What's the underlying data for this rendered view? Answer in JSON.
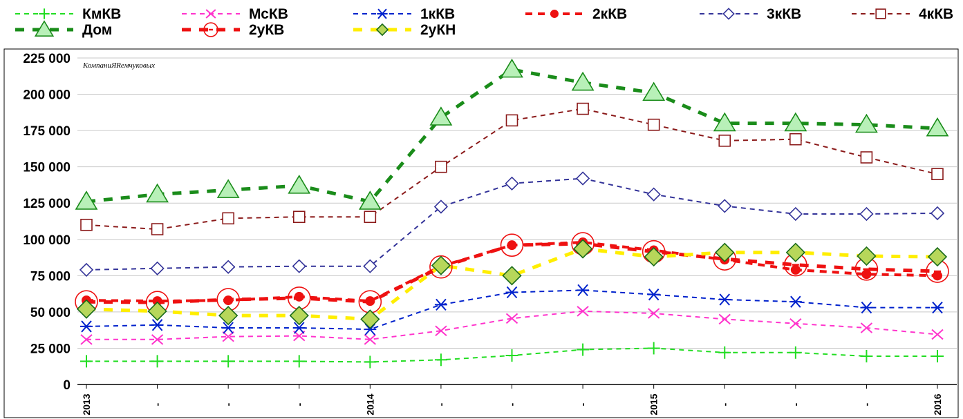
{
  "chart_data": {
    "type": "line",
    "title": "",
    "watermark": "КомпаниЯRемчуковых",
    "x_tick_labels": [
      "2013",
      "-",
      "-",
      "-",
      "2014",
      "-",
      "-",
      "-",
      "2015",
      "-",
      "-",
      "-",
      "2016"
    ],
    "ylim": [
      0,
      225000
    ],
    "y_ticks": [
      0,
      25000,
      50000,
      75000,
      100000,
      125000,
      150000,
      175000,
      200000,
      225000
    ],
    "y_tick_labels": [
      "0",
      "25 000",
      "50 000",
      "75 000",
      "100 000",
      "125 000",
      "150 000",
      "175 000",
      "200 000",
      "225 000"
    ],
    "grid": "horizontal",
    "legend_position": "top",
    "series": [
      {
        "name": "КмКВ",
        "color": "#22dd22",
        "marker": "plus",
        "dash": "dashed",
        "values": [
          16000,
          16000,
          16000,
          16000,
          15500,
          17000,
          20000,
          24000,
          25000,
          22000,
          22000,
          19500,
          19500
        ]
      },
      {
        "name": "МсКВ",
        "color": "#ff33cc",
        "marker": "x",
        "dash": "dashed",
        "values": [
          31000,
          31000,
          33000,
          33500,
          31000,
          37000,
          45500,
          50500,
          49000,
          45000,
          42000,
          39000,
          34500
        ]
      },
      {
        "name": "1кКВ",
        "color": "#0022cc",
        "marker": "asterisk",
        "dash": "dashed",
        "values": [
          40000,
          41000,
          39000,
          39000,
          38000,
          55000,
          63500,
          65000,
          62000,
          58500,
          57000,
          53000,
          53000
        ]
      },
      {
        "name": "2кКВ",
        "color": "#ee1111",
        "marker": "dot",
        "dash": "dotted",
        "values": [
          58000,
          57500,
          58000,
          60500,
          57500,
          81500,
          96000,
          98000,
          92500,
          86000,
          79000,
          76000,
          75000
        ]
      },
      {
        "name": "3кКВ",
        "color": "#333399",
        "marker": "diamond-open",
        "dash": "dashed",
        "values": [
          79000,
          80000,
          81000,
          81500,
          81500,
          122500,
          138500,
          142000,
          131000,
          123000,
          117500,
          117500,
          118000
        ]
      },
      {
        "name": "4кКВ",
        "color": "#8b1a1a",
        "marker": "square-open",
        "dash": "dashed",
        "values": [
          110000,
          107000,
          114500,
          115500,
          115500,
          150000,
          182000,
          190000,
          179000,
          168000,
          169000,
          156500,
          145000
        ]
      },
      {
        "name": "Дом",
        "color": "#1a8c1a",
        "fill": "#b8f0b8",
        "marker": "triangle",
        "dash": "thick-dashed",
        "values": [
          126000,
          131000,
          134000,
          137000,
          126000,
          184000,
          217000,
          208000,
          201000,
          180000,
          180000,
          179000,
          176500
        ]
      },
      {
        "name": "2уКВ",
        "color": "#ee1111",
        "marker": "circle-bar",
        "dash": "thick-dashed",
        "values": [
          57000,
          56500,
          58500,
          59500,
          57000,
          81000,
          96000,
          97000,
          91500,
          86500,
          82500,
          79500,
          78000
        ]
      },
      {
        "name": "2уКН",
        "color": "#ffee00",
        "fill": "#b7d75a",
        "marker": "diamond-filled",
        "dash": "thick-dashed",
        "values": [
          52000,
          50500,
          47500,
          47500,
          45000,
          82000,
          75000,
          93500,
          88000,
          91000,
          91000,
          88500,
          88000
        ]
      }
    ]
  }
}
